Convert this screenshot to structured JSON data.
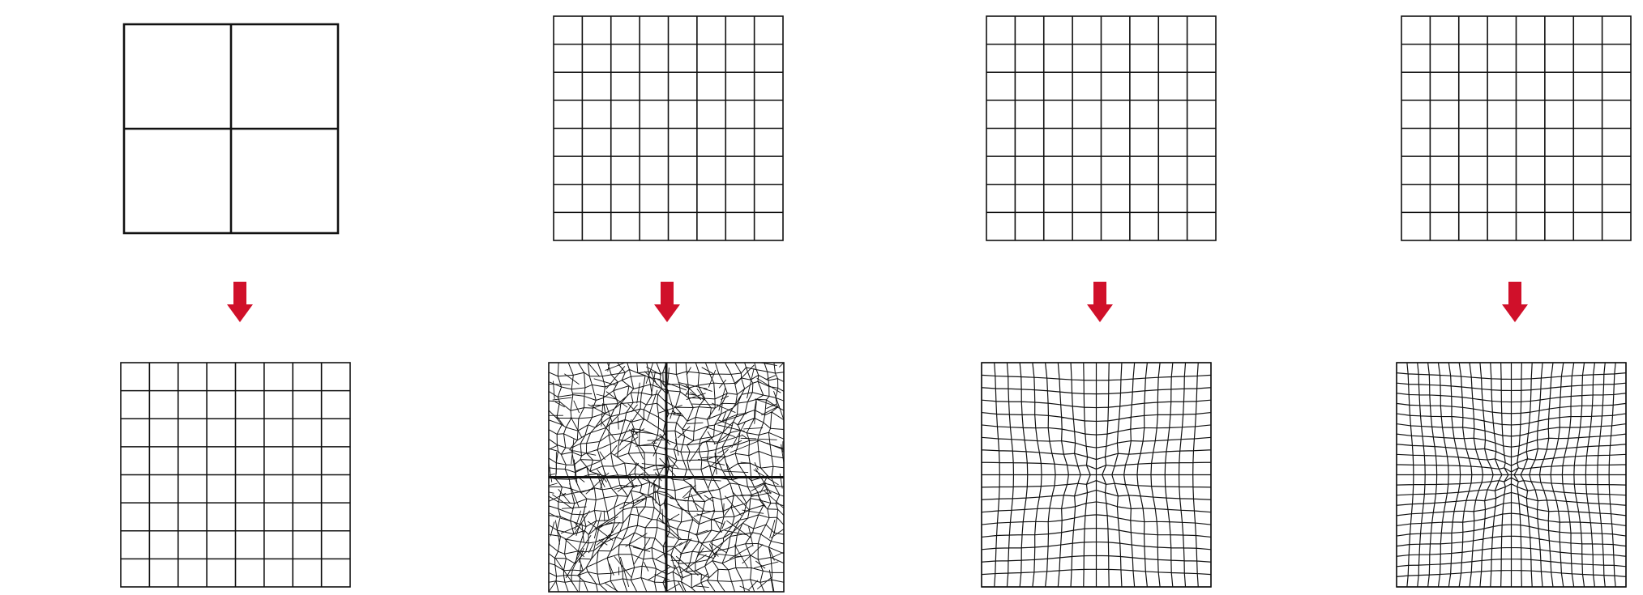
{
  "figure": {
    "panels": [
      {
        "id": "panel-1",
        "top_grid": 2,
        "bottom_grid": 8,
        "bottom_style": "regular-grid"
      },
      {
        "id": "panel-2",
        "top_grid": 8,
        "bottom_grid": 8,
        "bottom_style": "dense-distorted-mesh"
      },
      {
        "id": "panel-3",
        "top_grid": 8,
        "bottom_grid": 8,
        "bottom_style": "radial-distorted-mesh"
      },
      {
        "id": "panel-4",
        "top_grid": 8,
        "bottom_grid": 8,
        "bottom_style": "radial-star-mesh"
      }
    ],
    "colors": {
      "line": "#111111",
      "arrow": "#d0102a",
      "background": "#ffffff"
    },
    "icons": {
      "transition": "arrow-down-icon"
    }
  }
}
